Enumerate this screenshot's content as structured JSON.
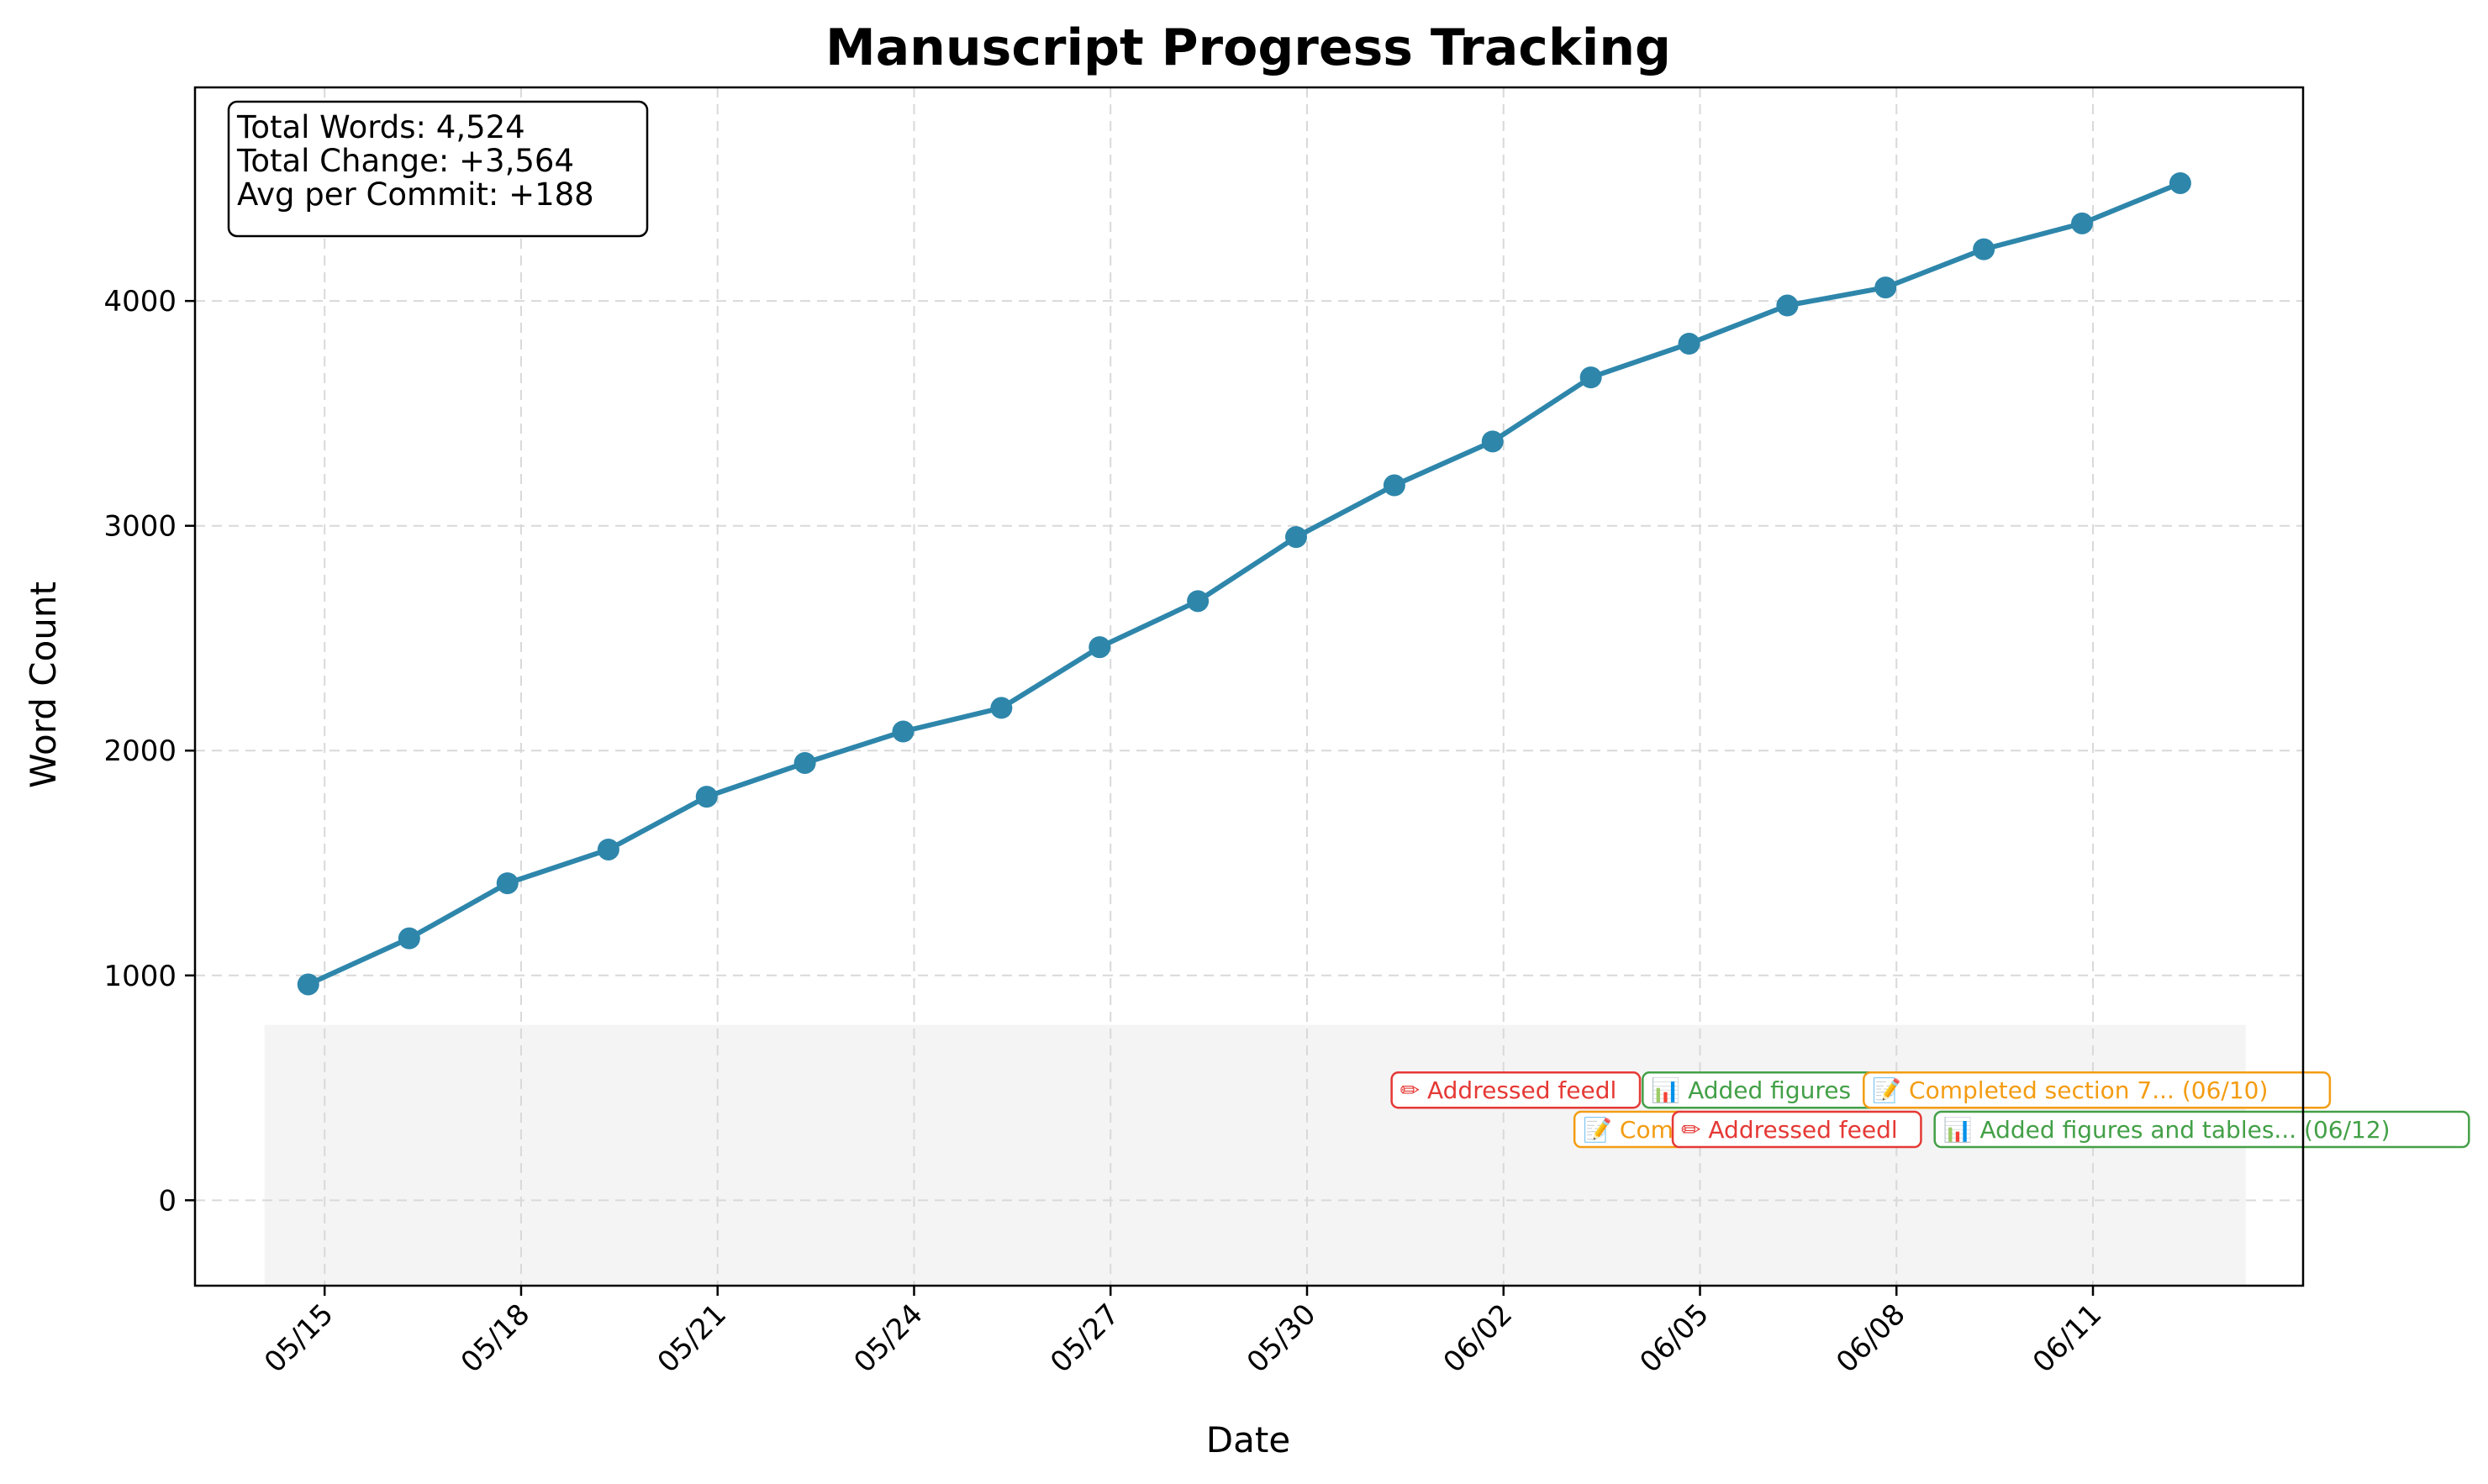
{
  "chart_data": {
    "type": "line",
    "title": "Manuscript Progress Tracking",
    "xlabel": "Date",
    "ylabel": "Word Count",
    "x_axis": "date",
    "x_ticks": [
      "2024-05-15",
      "2024-05-18",
      "2024-05-21",
      "2024-05-24",
      "2024-05-27",
      "2024-05-30",
      "2024-06-02",
      "2024-06-05",
      "2024-06-08",
      "2024-06-11"
    ],
    "x_tick_labels": [
      "05/15",
      "05/18",
      "05/21",
      "05/24",
      "05/27",
      "05/30",
      "06/02",
      "06/05",
      "06/08",
      "06/11"
    ],
    "xlim": [
      "2024-05-13T00:30",
      "2024-06-14T05:00"
    ],
    "ylim": [
      -380,
      4950
    ],
    "y_ticks": [
      0,
      1000,
      2000,
      3000,
      4000
    ],
    "grid": true,
    "series": [
      {
        "color": "#2e86ab",
        "points": [
          {
            "date": "2024-05-14T18:00",
            "value": 960
          },
          {
            "date": "2024-05-16T07:00",
            "value": 1165
          },
          {
            "date": "2024-05-17T19:00",
            "value": 1410
          },
          {
            "date": "2024-05-19T08:00",
            "value": 1560
          },
          {
            "date": "2024-05-20T20:00",
            "value": 1795
          },
          {
            "date": "2024-05-22T08:00",
            "value": 1945
          },
          {
            "date": "2024-05-23T20:00",
            "value": 2085
          },
          {
            "date": "2024-05-25T08:00",
            "value": 2190
          },
          {
            "date": "2024-05-26T20:00",
            "value": 2460
          },
          {
            "date": "2024-05-28T08:00",
            "value": 2665
          },
          {
            "date": "2024-05-29T20:00",
            "value": 2950
          },
          {
            "date": "2024-05-31T08:00",
            "value": 3180
          },
          {
            "date": "2024-06-01T20:00",
            "value": 3375
          },
          {
            "date": "2024-06-03T08:00",
            "value": 3660
          },
          {
            "date": "2024-06-04T20:00",
            "value": 3810
          },
          {
            "date": "2024-06-06T08:00",
            "value": 3980
          },
          {
            "date": "2024-06-07T20:00",
            "value": 4060
          },
          {
            "date": "2024-06-09T08:00",
            "value": 4230
          },
          {
            "date": "2024-06-10T20:00",
            "value": 4345
          },
          {
            "date": "2024-06-12T08:00",
            "value": 4524
          }
        ]
      }
    ],
    "annotation_band": {
      "start": "2024-05-14T02:00",
      "end": "2024-06-13T08:00",
      "y_range": [
        -380,
        780
      ],
      "color": "#f4f4f4"
    },
    "annotations": [
      {
        "text": "✏ Addressed feedl",
        "color": "#e53935",
        "anchor_date": "2024-05-31T07:00",
        "y": 490
      },
      {
        "text": "📊 Added figures",
        "color": "#43a047",
        "anchor_date": "2024-06-04T03:00",
        "y": 490
      },
      {
        "text": "📝 Completed section 7... (06/10)",
        "color": "#f39c12",
        "anchor_date": "2024-06-07T12:00",
        "y": 490
      },
      {
        "text": "📝 Comp",
        "color": "#f39c12",
        "anchor_date": "2024-06-03T02:00",
        "y": 315
      },
      {
        "text": "✏ Addressed feedl",
        "color": "#e53935",
        "anchor_date": "2024-06-04T14:00",
        "y": 315
      },
      {
        "text": "📊 Added figures and tables... (06/12)",
        "color": "#43a047",
        "anchor_date": "2024-06-08T14:00",
        "y": 315
      }
    ],
    "stats_box": {
      "lines": [
        "Total Words: 4,524",
        "Total Change: +3,564",
        "Avg per Commit: +188"
      ]
    }
  }
}
